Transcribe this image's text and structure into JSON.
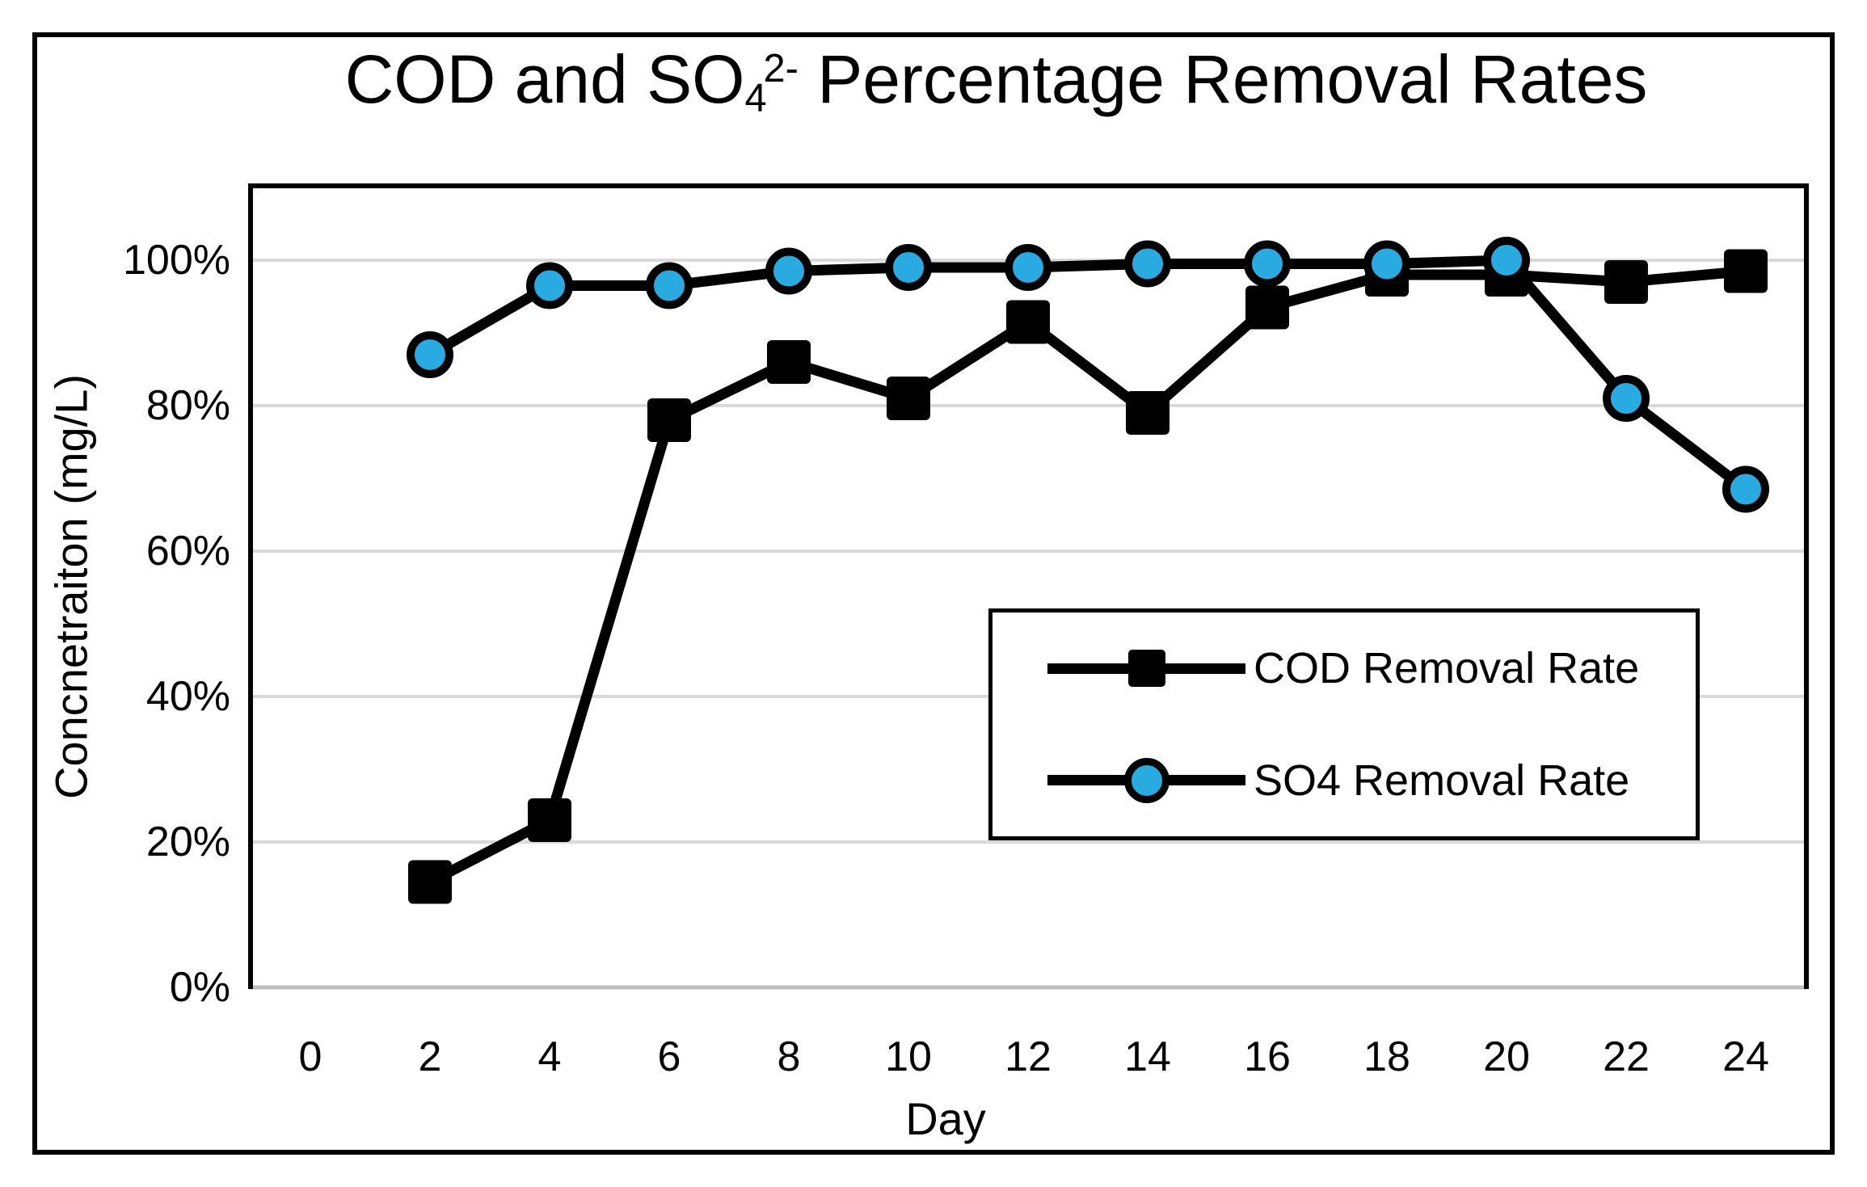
{
  "title": {
    "prefix": "COD and SO",
    "sub": "4",
    "sup": "2-",
    "suffix": " Percentage Removal Rates"
  },
  "colors": {
    "background": "#FFFFFF",
    "border": "#000000",
    "series_line": "#000000",
    "cod_marker_fill": "#000000",
    "so4_marker_fill": "#29ABE2",
    "gridline": "#D9D9D9",
    "axis_line": "#BFBFBF"
  },
  "chart_data": {
    "type": "line",
    "title": "COD and SO₄²⁻ Percentage Removal Rates",
    "xlabel": "Day",
    "ylabel": "Concnetraiton (mg/L)",
    "x_ticks": [
      0,
      2,
      4,
      6,
      8,
      10,
      12,
      14,
      16,
      18,
      20,
      22,
      24
    ],
    "y_ticks": [
      "0%",
      "20%",
      "40%",
      "60%",
      "80%",
      "100%"
    ],
    "y_tick_values": [
      0,
      20,
      40,
      60,
      80,
      100
    ],
    "ylim": [
      0,
      110
    ],
    "grid": "horizontal",
    "legend_position": "inside-right",
    "x": [
      2,
      4,
      6,
      8,
      10,
      12,
      14,
      16,
      18,
      20,
      22,
      24
    ],
    "series": [
      {
        "name": "COD Removal Rate",
        "marker": "square",
        "marker_color": "#000000",
        "line_color": "#000000",
        "values": [
          14.5,
          23,
          78,
          86,
          81,
          91.5,
          79,
          93.5,
          98,
          98,
          97,
          98.5
        ]
      },
      {
        "name": "SO4 Removal Rate",
        "marker": "circle",
        "marker_color": "#29ABE2",
        "line_color": "#000000",
        "values": [
          87,
          96.5,
          96.5,
          98.5,
          99,
          99,
          99.5,
          99.5,
          99.5,
          100,
          81,
          68.5
        ]
      }
    ]
  }
}
